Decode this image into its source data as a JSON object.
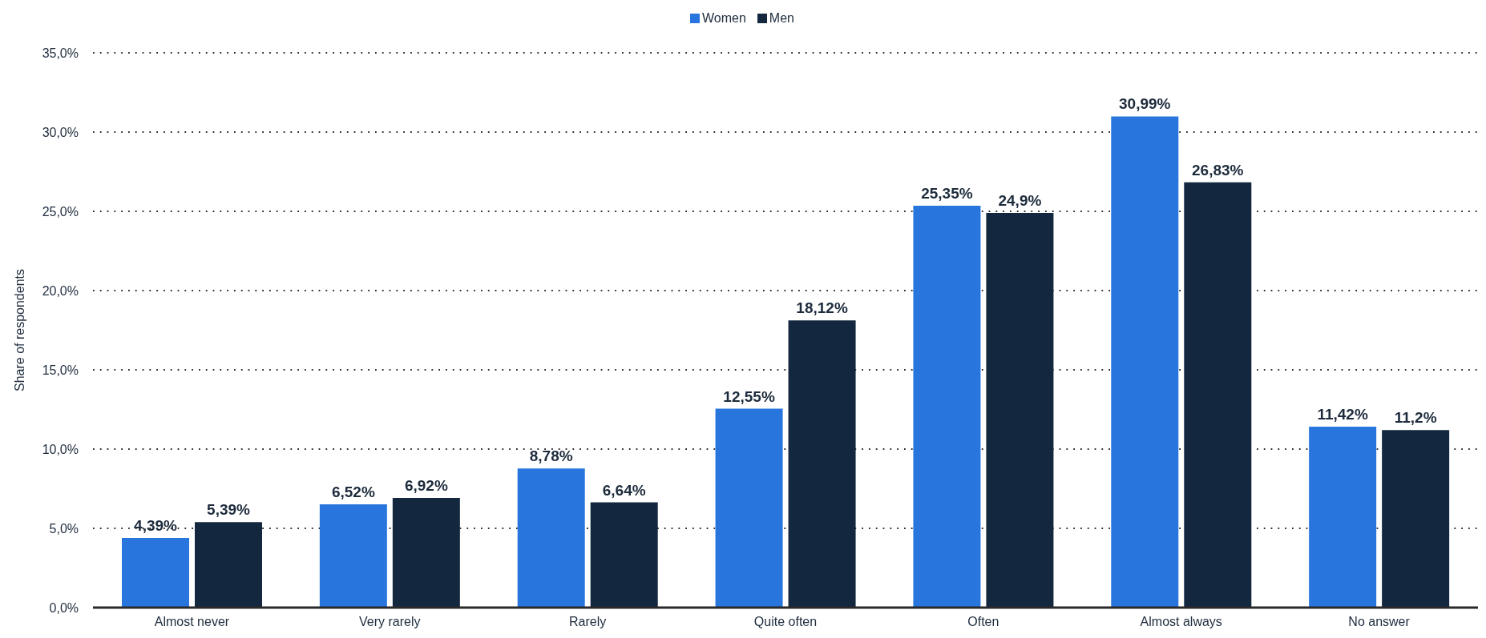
{
  "chart_data": {
    "type": "bar",
    "categories": [
      "Almost never",
      "Very rarely",
      "Rarely",
      "Quite often",
      "Often",
      "Almost always",
      "No answer"
    ],
    "series": [
      {
        "name": "Women",
        "color": "#2876dd",
        "values": [
          4.39,
          6.52,
          8.78,
          12.55,
          25.35,
          30.99,
          11.42
        ],
        "value_labels": [
          "4,39%",
          "6,52%",
          "8,78%",
          "12,55%",
          "25,35%",
          "30,99%",
          "11,42%"
        ]
      },
      {
        "name": "Men",
        "color": "#13283e",
        "values": [
          5.39,
          6.92,
          6.64,
          18.12,
          24.9,
          26.83,
          11.2
        ],
        "value_labels": [
          "5,39%",
          "6,92%",
          "6,64%",
          "18,12%",
          "24,9%",
          "26,83%",
          "11,2%"
        ]
      }
    ],
    "ylabel": "Share of respondents",
    "ylim": [
      0,
      35
    ],
    "yticks": [
      {
        "value": 0,
        "label": "0,0%"
      },
      {
        "value": 5,
        "label": "5,0%"
      },
      {
        "value": 10,
        "label": "10,0%"
      },
      {
        "value": 15,
        "label": "15,0%"
      },
      {
        "value": 20,
        "label": "20,0%"
      },
      {
        "value": 25,
        "label": "25,0%"
      },
      {
        "value": 30,
        "label": "30,0%"
      },
      {
        "value": 35,
        "label": "35,0%"
      }
    ],
    "grid": "y",
    "legend": "top"
  }
}
